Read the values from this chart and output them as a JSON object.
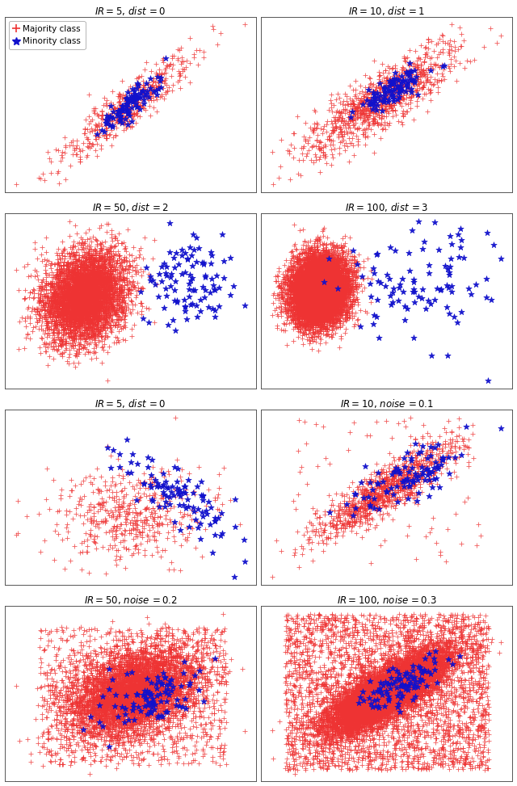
{
  "titles": [
    "$IR=5,\\, dist\\,=0$",
    "$IR=10,\\, dist\\,=1$",
    "$IR=50,\\, dist\\,=2$",
    "$IR=100,\\, dist\\,=3$",
    "$IR=5,\\, dist\\,=0$",
    "$IR=10,\\, noise\\,=0.1$",
    "$IR=50,\\, noise\\,=0.2$",
    "$IR=100,\\, noise\\,=0.3$"
  ],
  "majority_color": "#EE3333",
  "minority_color": "#1111CC",
  "majority_label": "Majority class",
  "minority_label": "Minority class",
  "fig_width": 6.4,
  "fig_height": 9.73,
  "dpi": 100
}
